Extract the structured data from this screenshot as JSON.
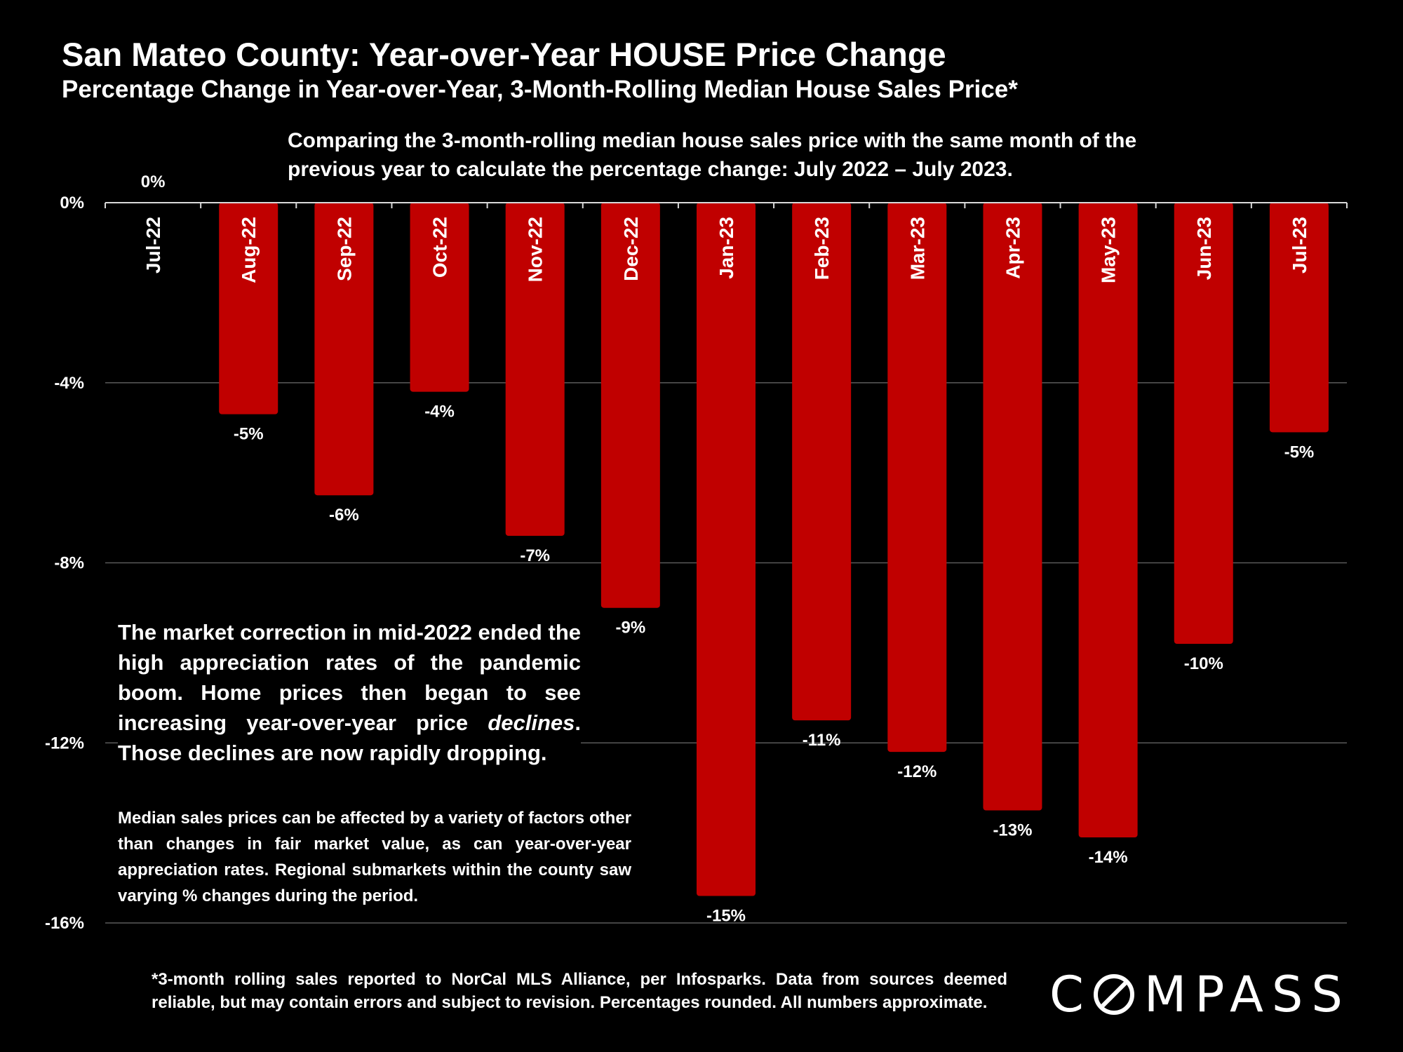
{
  "header": {
    "title": "San Mateo County: Year-over-Year HOUSE Price Change",
    "subtitle": "Percentage Change in Year-over-Year, 3-Month-Rolling Median House Sales Price*",
    "note": "Comparing the 3-month-rolling median house sales price with the same month of the previous year to calculate the percentage change: July 2022 – July 2023."
  },
  "annotation": {
    "part1": "The market correction in mid-2022 ended the high appreciation rates of the pandemic boom.  Home prices then began to see increasing year-over-year price ",
    "emphasis": "declines",
    "part2": ". Those declines are now rapidly dropping."
  },
  "disclaimer": "Median sales prices can be affected by a variety of factors other than changes in fair market value, as can year-over-year appreciation rates. Regional submarkets within the county saw varying % changes during the period.",
  "footnote": "*3-month rolling sales reported to NorCal MLS Alliance, per Infosparks. Data from sources deemed reliable, but may contain errors and subject to revision. Percentages rounded. All numbers approximate.",
  "logo": {
    "text_before": "C",
    "text_after": "MPASS"
  },
  "colors": {
    "background": "#000000",
    "bar": "#c00000",
    "text": "#ffffff",
    "gridline": "#5a5a5a"
  },
  "chart_data": {
    "type": "bar",
    "title": "San Mateo County: Year-over-Year HOUSE Price Change",
    "subtitle": "Percentage Change in Year-over-Year, 3-Month-Rolling Median House Sales Price*",
    "xlabel": "",
    "ylabel": "",
    "categories": [
      "Jul-22",
      "Aug-22",
      "Sep-22",
      "Oct-22",
      "Nov-22",
      "Dec-22",
      "Jan-23",
      "Feb-23",
      "Mar-23",
      "Apr-23",
      "May-23",
      "Jun-23",
      "Jul-23"
    ],
    "values": [
      0,
      -4.7,
      -6.5,
      -4.2,
      -7.4,
      -9.0,
      -15.4,
      -11.5,
      -12.2,
      -13.5,
      -14.1,
      -9.8,
      -5.1
    ],
    "data_labels": [
      "0%",
      "-5%",
      "-6%",
      "-4%",
      "-7%",
      "-9%",
      "-15%",
      "-11%",
      "-12%",
      "-13%",
      "-14%",
      "-10%",
      "-5%"
    ],
    "ylim": [
      -16,
      0
    ],
    "yticks": [
      0,
      -4,
      -8,
      -12,
      -16
    ],
    "ytick_labels": [
      "0%",
      "-4%",
      "-8%",
      "-12%",
      "-16%"
    ],
    "grid": true,
    "legend": "none"
  }
}
